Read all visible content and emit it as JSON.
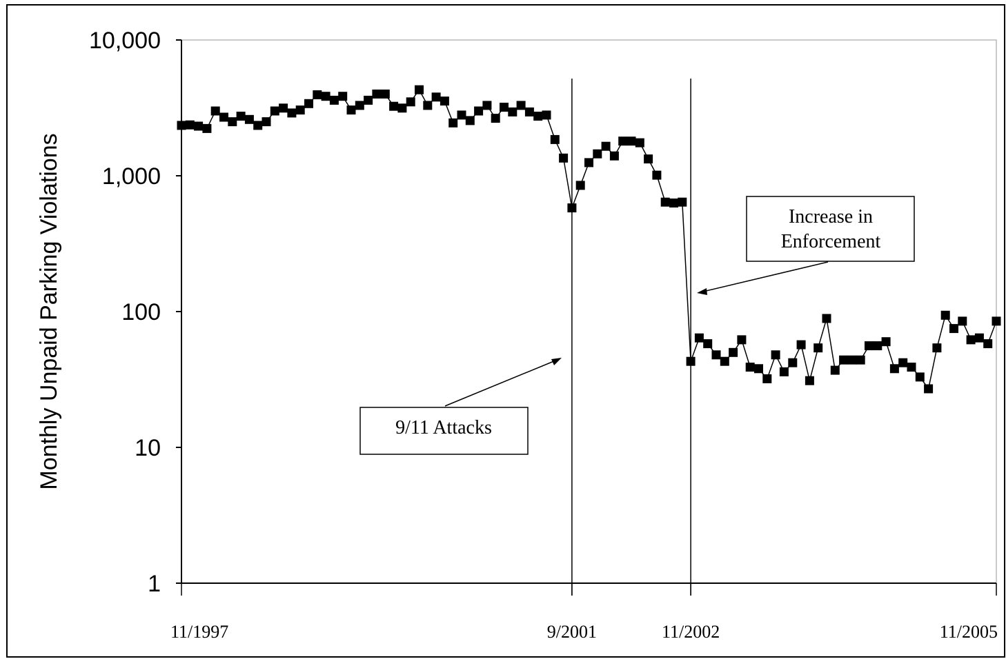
{
  "chart_data": {
    "type": "line",
    "title": "",
    "xlabel": "",
    "ylabel": "Monthly Unpaid Parking Violations",
    "yscale": "log",
    "ylim": [
      1,
      10000
    ],
    "yticks": [
      "1",
      "10",
      "100",
      "1,000",
      "10,000"
    ],
    "yticks_values": [
      1,
      10,
      100,
      1000,
      10000
    ],
    "xticks": [
      {
        "label": "11/1997",
        "date": "1997-11"
      },
      {
        "label": "9/2001",
        "date": "2001-09"
      },
      {
        "label": "11/2002",
        "date": "2002-11"
      },
      {
        "label": "11/2005",
        "date": "2005-11"
      }
    ],
    "xlim": [
      "1997-11",
      "2005-11"
    ],
    "grid": false,
    "legend": "none",
    "marker": "square",
    "line_color": "#000000",
    "series": [
      {
        "start": "1997-11",
        "frequency": "monthly",
        "values": [
          2350,
          2370,
          2320,
          2230,
          3000,
          2700,
          2500,
          2750,
          2600,
          2350,
          2500,
          3000,
          3150,
          2900,
          3050,
          3400,
          3950,
          3850,
          3600,
          3850,
          3050,
          3300,
          3600,
          4000,
          4000,
          3250,
          3150,
          3500,
          4300,
          3300,
          3800,
          3550,
          2450,
          2800,
          2550,
          3000,
          3300,
          2650,
          3200,
          2950,
          3300,
          2950,
          2750,
          2800,
          1850,
          1350,
          580,
          850,
          1250,
          1450,
          1650,
          1400,
          1800,
          1800,
          1750,
          1330,
          1010,
          640,
          630,
          640,
          43,
          64,
          58,
          48,
          43,
          50,
          62,
          39,
          38,
          32,
          48,
          36,
          42,
          57,
          31,
          54,
          89,
          37,
          44,
          44,
          44,
          56,
          56,
          60,
          38,
          42,
          39,
          33,
          27,
          54,
          94,
          75,
          85,
          62,
          64,
          58,
          85
        ]
      }
    ],
    "vlines": [
      "2001-09",
      "2002-11"
    ],
    "annotations": [
      {
        "text_lines": [
          "9/11 Attacks"
        ],
        "points_to": "2001-09"
      },
      {
        "text_lines": [
          "Increase in",
          "Enforcement"
        ],
        "points_to": "2002-11"
      }
    ]
  }
}
